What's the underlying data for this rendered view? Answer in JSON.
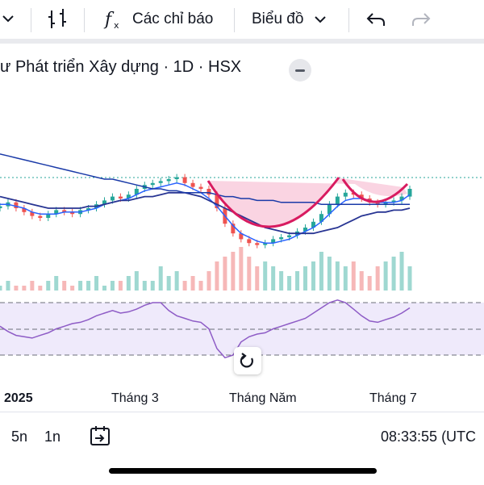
{
  "toolbar": {
    "indicators_label": "Các chỉ báo",
    "chart_type_label": "Biểu đồ"
  },
  "symbol": {
    "title": "ư Phát triển Xây dựng · 1D · HSX"
  },
  "chart_data": {
    "type": "candlestick",
    "x_tick_labels": [
      "2025",
      "Tháng 3",
      "Tháng Năm",
      "Tháng 7"
    ],
    "series": [
      {
        "indicator": "price",
        "values": [
          61,
          63,
          60,
          58,
          56,
          55,
          57,
          59,
          58,
          57,
          59,
          60,
          62,
          64,
          66,
          65,
          67,
          70,
          72,
          73,
          74,
          75,
          76,
          73,
          71,
          70,
          67,
          60,
          52,
          47,
          44,
          42,
          41,
          42,
          44,
          45,
          46,
          48,
          50,
          53,
          57,
          62,
          66,
          68,
          67,
          65,
          63,
          62,
          63,
          64,
          66,
          70
        ]
      },
      {
        "indicator": "MA (short)",
        "values": [
          62,
          62,
          61,
          60,
          58,
          57,
          57,
          57,
          58,
          58,
          58,
          59,
          60,
          62,
          63,
          64,
          65,
          67,
          69,
          70,
          71,
          72,
          73,
          72,
          70,
          68,
          65,
          61,
          56,
          51,
          47,
          45,
          43,
          42,
          42,
          43,
          44,
          46,
          48,
          50,
          53,
          57,
          61,
          64,
          65,
          65,
          64,
          63,
          63,
          63,
          64,
          67
        ]
      },
      {
        "indicator": "MA (medium)",
        "values": [
          66,
          65,
          64,
          63,
          62,
          61,
          60,
          60,
          60,
          60,
          60,
          61,
          61,
          62,
          63,
          64,
          64,
          65,
          66,
          66,
          67,
          68,
          68,
          68,
          67,
          66,
          64,
          62,
          60,
          58,
          56,
          54,
          52,
          50,
          49,
          48,
          47,
          47,
          47,
          47,
          48,
          49,
          50,
          52,
          54,
          56,
          57,
          58,
          58,
          59,
          59,
          60
        ]
      },
      {
        "indicator": "MA (long)",
        "values": [
          88,
          87,
          86,
          85,
          84,
          83,
          82,
          81,
          80,
          79,
          78,
          77,
          76,
          75,
          75,
          74,
          73,
          72,
          71,
          70,
          70,
          69,
          69,
          68,
          68,
          68,
          68,
          67,
          66,
          66,
          65,
          65,
          64,
          64,
          64,
          63,
          63,
          63,
          63,
          63,
          62,
          62,
          62,
          62,
          62,
          62,
          62,
          62,
          62,
          62,
          62,
          62
        ]
      },
      {
        "indicator": "RSI",
        "values": [
          52,
          48,
          45,
          44,
          43,
          45,
          47,
          50,
          52,
          54,
          55,
          57,
          60,
          62,
          64,
          62,
          63,
          65,
          68,
          70,
          70,
          64,
          60,
          58,
          56,
          55,
          50,
          35,
          28,
          30,
          40,
          44,
          46,
          47,
          50,
          52,
          54,
          56,
          58,
          62,
          66,
          70,
          72,
          70,
          65,
          60,
          56,
          55,
          57,
          59,
          62,
          66
        ]
      }
    ],
    "volume": [
      1,
      2,
      1,
      1,
      2,
      1,
      2,
      3,
      2,
      1,
      2,
      2,
      3,
      1,
      2,
      2,
      3,
      4,
      2,
      2,
      5,
      3,
      4,
      2,
      3,
      2,
      4,
      6,
      7,
      8,
      9,
      7,
      5,
      6,
      5,
      4,
      3,
      4,
      5,
      6,
      8,
      7,
      6,
      5,
      6,
      4,
      3,
      5,
      6,
      7,
      8,
      5
    ],
    "rsi_levels": [
      70,
      50,
      30
    ]
  },
  "bottombar": {
    "range_5n": "5n",
    "range_1n": "1n",
    "clock": "08:33:55 (UTC"
  }
}
